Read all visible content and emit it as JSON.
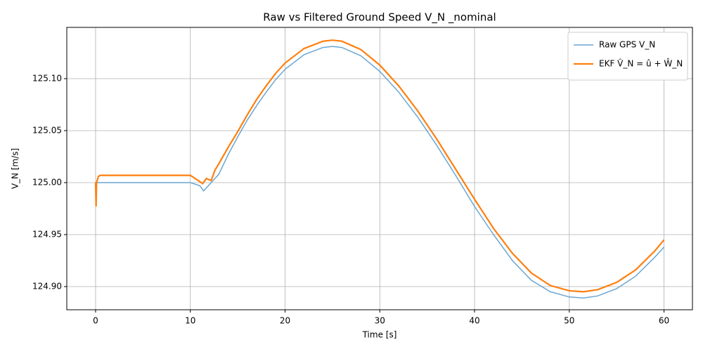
{
  "chart_data": {
    "type": "line",
    "title": "Raw vs Filtered Ground Speed V_N _nominal",
    "x_label": "Time [s]",
    "y_label": "V_N [m/s]",
    "xlim": [
      -3.04,
      63.0
    ],
    "ylim": [
      124.8777,
      125.1493
    ],
    "xticks": [
      0,
      10,
      20,
      30,
      40,
      50,
      60
    ],
    "yticks": [
      {
        "value": 124.9,
        "label": "124.90"
      },
      {
        "value": 124.95,
        "label": "124.95"
      },
      {
        "value": 125.0,
        "label": "125.00"
      },
      {
        "value": 125.05,
        "label": "125.05"
      },
      {
        "value": 125.1,
        "label": "125.10"
      }
    ],
    "grid": true,
    "legend": "upper right",
    "series": [
      {
        "name": "Raw GPS V_N",
        "color": "#6ba6d1",
        "width": 1.5,
        "x": [
          0,
          10,
          11,
          11.4,
          12,
          13,
          14,
          15,
          16,
          17,
          18,
          19,
          20,
          22,
          24,
          25,
          26,
          28,
          30,
          32,
          34,
          36,
          38,
          40,
          42,
          44,
          46,
          48,
          50,
          51.5,
          53,
          55,
          57,
          59,
          60
        ],
        "values": [
          125.0,
          125.0,
          124.997,
          124.992,
          124.998,
          125.008,
          125.027,
          125.044,
          125.06,
          125.074,
          125.087,
          125.099,
          125.109,
          125.123,
          125.13,
          125.131,
          125.13,
          125.122,
          125.107,
          125.087,
          125.063,
          125.036,
          125.007,
          124.977,
          124.95,
          124.925,
          124.906,
          124.895,
          124.89,
          124.889,
          124.891,
          124.898,
          124.91,
          124.928,
          124.938
        ]
      },
      {
        "name": "EKF V̂_N = û + Ŵ_N",
        "color": "#ff7f0e",
        "width": 2.2,
        "x": [
          0,
          0.05,
          0.1,
          0.3,
          0.5,
          10,
          11,
          11.3,
          11.7,
          12.2,
          12.6,
          13,
          14,
          15,
          16,
          17,
          18,
          19,
          20,
          22,
          24,
          25,
          26,
          28,
          30,
          32,
          34,
          36,
          38,
          40,
          42,
          44,
          46,
          48,
          50,
          51.5,
          53,
          55,
          57,
          59,
          60
        ],
        "values": [
          125.0,
          124.977,
          125.0,
          125.006,
          125.007,
          125.007,
          125.001,
          124.999,
          125.004,
          125.002,
          125.012,
          125.018,
          125.034,
          125.049,
          125.065,
          125.08,
          125.093,
          125.105,
          125.115,
          125.129,
          125.136,
          125.137,
          125.136,
          125.128,
          125.113,
          125.093,
          125.069,
          125.042,
          125.013,
          124.984,
          124.956,
          124.932,
          124.913,
          124.901,
          124.896,
          124.895,
          124.897,
          124.904,
          124.916,
          124.934,
          124.945
        ]
      }
    ]
  }
}
